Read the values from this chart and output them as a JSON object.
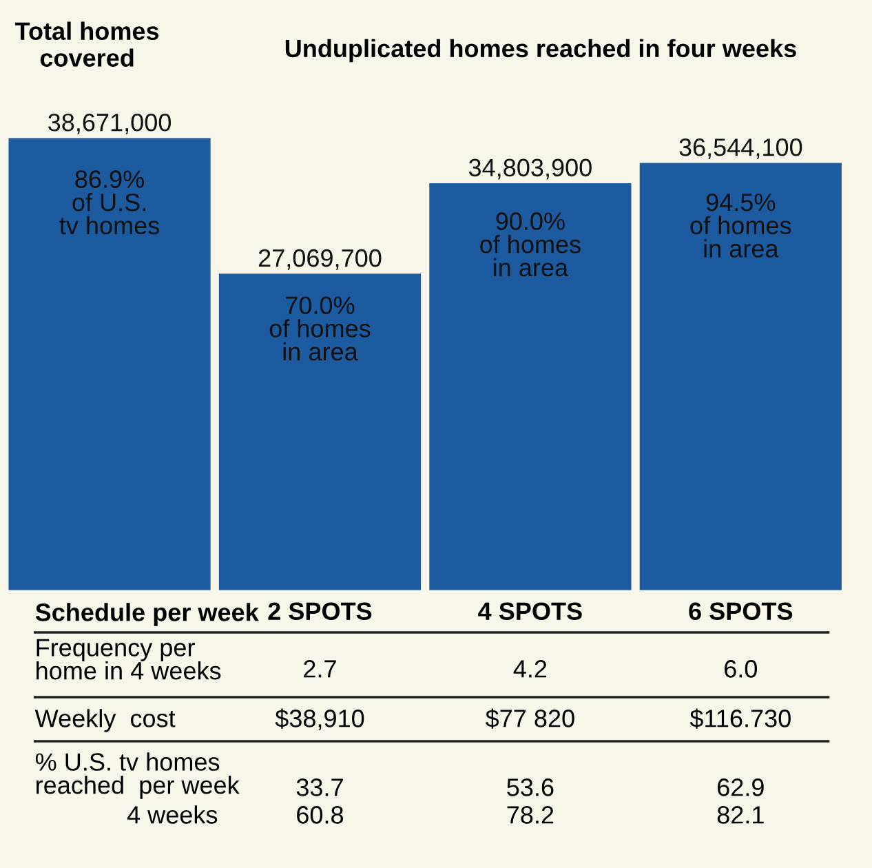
{
  "chart_data": {
    "type": "bar",
    "title": "Unduplicated homes reached in four weeks",
    "xlabel": "Schedule per week",
    "categories": [
      null,
      "2 SPOTS",
      "4 SPOTS",
      "6 SPOTS"
    ],
    "values": [
      38671000,
      27069700,
      34803900,
      36544100
    ],
    "value_labels": [
      "38,671,000",
      "27,069,700",
      "34,803,900",
      "36,544,100"
    ],
    "color": "#1d5ba0",
    "annotations": [
      "Total homes\ncovered",
      "86.9%\nof U.S.\ntv homes",
      "70.0%\nof homes\nin area",
      "90.0%\nof homes\nin area",
      "94.5%\nof homes\nin area",
      "Frequency per\nhome in 4 weeks",
      "2.7",
      "4.2",
      "6.0",
      "Weekly  cost",
      "$38,910",
      "$77 820",
      "$116.730",
      "% U.S. tv homes\nreached  per week",
      "33.7",
      "53.6",
      "62.9",
      "4 weeks",
      "60.8",
      "78.2",
      "82.1"
    ],
    "grid": false,
    "legend": false
  }
}
